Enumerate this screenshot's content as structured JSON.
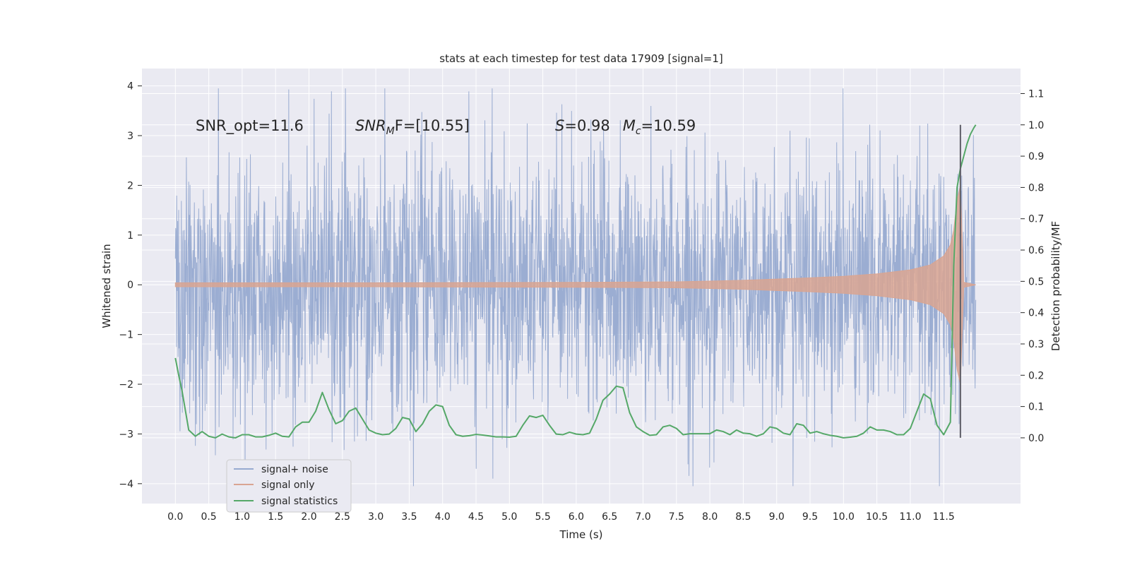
{
  "chart_data": {
    "type": "line",
    "title": "stats at each timestep for test data 17909 [signal=1]",
    "xlabel": "Time (s)",
    "ylabel": "Whitened strain",
    "y2label": "Detection probability/MF",
    "xlim": [
      -0.5,
      12.65
    ],
    "ylim": [
      -4.4,
      4.35
    ],
    "y2lim": [
      -0.21,
      1.18
    ],
    "x_ticks": [
      "0.0",
      "0.5",
      "1.0",
      "1.5",
      "2.0",
      "2.5",
      "3.0",
      "3.5",
      "4.0",
      "4.5",
      "5.0",
      "5.5",
      "6.0",
      "6.5",
      "7.0",
      "7.5",
      "8.0",
      "8.5",
      "9.0",
      "9.5",
      "10.0",
      "10.5",
      "11.0",
      "11.5"
    ],
    "y_ticks": [
      "4",
      "3",
      "2",
      "1",
      "0",
      "−1",
      "−2",
      "−3",
      "−4"
    ],
    "y2_ticks": [
      "1.1",
      "1.0",
      "0.9",
      "0.8",
      "0.7",
      "0.6",
      "0.5",
      "0.4",
      "0.3",
      "0.2",
      "0.1",
      "0.0"
    ],
    "grid": true,
    "legend_position": "lower-left",
    "annotations": {
      "snr_opt": "SNR_opt=11.6",
      "snr_mf_main": "SNR",
      "snr_mf_sub": "M",
      "snr_mf_rest": "F=[10.55]",
      "s_var": "S",
      "s_rest": "=0.98",
      "mc_var": "M",
      "mc_sub": "c",
      "mc_rest": "=10.59"
    },
    "series": [
      {
        "name": "signal+ noise",
        "color": "#97aad0",
        "x_range": [
          0.0,
          11.98
        ],
        "typical_abs_amplitude": 1.3,
        "max": 3.95,
        "min": -4.05
      },
      {
        "name": "signal only",
        "color": "#d9a592",
        "envelope_x": [
          0.0,
          3.0,
          6.0,
          7.5,
          8.5,
          9.5,
          10.0,
          10.5,
          11.0,
          11.3,
          11.5,
          11.6,
          11.65,
          11.7,
          11.75,
          11.8,
          11.98
        ],
        "envelope_y": [
          0.04,
          0.04,
          0.05,
          0.06,
          0.09,
          0.14,
          0.17,
          0.22,
          0.3,
          0.4,
          0.58,
          0.8,
          1.1,
          1.7,
          2.0,
          0.05,
          0.0
        ]
      },
      {
        "name": "signal statistics",
        "color": "#55a868",
        "axis": "right",
        "x": [
          0.0,
          0.05,
          0.1,
          0.2,
          0.3,
          0.4,
          0.5,
          0.6,
          0.7,
          0.8,
          0.9,
          1.0,
          1.1,
          1.2,
          1.3,
          1.4,
          1.5,
          1.6,
          1.7,
          1.8,
          1.9,
          2.0,
          2.1,
          2.2,
          2.3,
          2.4,
          2.5,
          2.6,
          2.7,
          2.8,
          2.9,
          3.0,
          3.1,
          3.2,
          3.3,
          3.4,
          3.5,
          3.6,
          3.7,
          3.8,
          3.9,
          4.0,
          4.1,
          4.2,
          4.3,
          4.4,
          4.5,
          4.6,
          4.7,
          4.8,
          4.9,
          5.0,
          5.1,
          5.2,
          5.3,
          5.4,
          5.5,
          5.6,
          5.7,
          5.8,
          5.9,
          6.0,
          6.1,
          6.2,
          6.3,
          6.4,
          6.5,
          6.6,
          6.7,
          6.8,
          6.9,
          7.0,
          7.1,
          7.2,
          7.3,
          7.4,
          7.5,
          7.6,
          7.7,
          7.8,
          7.9,
          8.0,
          8.1,
          8.2,
          8.3,
          8.4,
          8.5,
          8.6,
          8.7,
          8.8,
          8.9,
          9.0,
          9.1,
          9.2,
          9.3,
          9.4,
          9.5,
          9.6,
          9.7,
          9.8,
          9.9,
          10.0,
          10.1,
          10.2,
          10.3,
          10.4,
          10.5,
          10.6,
          10.7,
          10.8,
          10.9,
          11.0,
          11.1,
          11.2,
          11.3,
          11.4,
          11.5,
          11.6,
          11.65,
          11.7,
          11.75,
          11.8,
          11.85,
          11.9,
          11.95,
          11.98
        ],
        "y": [
          0.255,
          0.2,
          0.15,
          0.025,
          0.005,
          0.02,
          0.005,
          0.0,
          0.012,
          0.003,
          0.0,
          0.01,
          0.01,
          0.003,
          0.003,
          0.008,
          0.015,
          0.005,
          0.003,
          0.035,
          0.05,
          0.05,
          0.085,
          0.145,
          0.09,
          0.045,
          0.055,
          0.085,
          0.095,
          0.06,
          0.025,
          0.015,
          0.01,
          0.012,
          0.03,
          0.065,
          0.06,
          0.02,
          0.045,
          0.085,
          0.105,
          0.1,
          0.04,
          0.01,
          0.005,
          0.007,
          0.011,
          0.009,
          0.006,
          0.003,
          0.003,
          0.002,
          0.005,
          0.04,
          0.07,
          0.065,
          0.072,
          0.04,
          0.012,
          0.01,
          0.018,
          0.012,
          0.01,
          0.015,
          0.06,
          0.12,
          0.14,
          0.165,
          0.16,
          0.08,
          0.035,
          0.02,
          0.008,
          0.01,
          0.035,
          0.04,
          0.03,
          0.01,
          0.013,
          0.013,
          0.013,
          0.013,
          0.025,
          0.02,
          0.01,
          0.025,
          0.015,
          0.013,
          0.005,
          0.013,
          0.035,
          0.03,
          0.015,
          0.01,
          0.045,
          0.04,
          0.015,
          0.02,
          0.013,
          0.008,
          0.005,
          0.0,
          0.002,
          0.005,
          0.015,
          0.035,
          0.025,
          0.025,
          0.02,
          0.01,
          0.01,
          0.03,
          0.085,
          0.14,
          0.125,
          0.04,
          0.01,
          0.05,
          0.55,
          0.8,
          0.86,
          0.9,
          0.94,
          0.97,
          0.99,
          1.0
        ]
      }
    ],
    "vertical_line": {
      "x": 11.75,
      "y_from": 0.0,
      "y_to": 1.0,
      "axis": "right",
      "color": "#5d5d66"
    }
  },
  "colors": {
    "plot_background": "#eaeaf2",
    "grid": "#ffffff",
    "text": "#262626"
  }
}
